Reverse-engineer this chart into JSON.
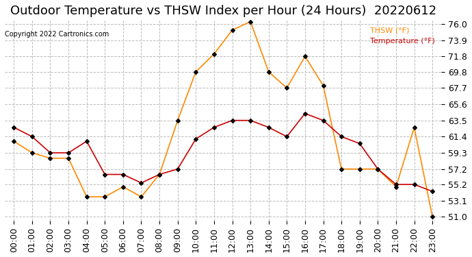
{
  "title": "Outdoor Temperature vs THSW Index per Hour (24 Hours)  20220612",
  "copyright": "Copyright 2022 Cartronics.com",
  "hours": [
    "00:00",
    "01:00",
    "02:00",
    "03:00",
    "04:00",
    "05:00",
    "06:00",
    "07:00",
    "08:00",
    "09:00",
    "10:00",
    "11:00",
    "12:00",
    "13:00",
    "14:00",
    "15:00",
    "16:00",
    "17:00",
    "18:00",
    "19:00",
    "20:00",
    "21:00",
    "22:00",
    "23:00"
  ],
  "temperature": [
    62.6,
    61.4,
    59.3,
    59.3,
    60.8,
    56.5,
    56.5,
    55.4,
    56.5,
    57.2,
    61.1,
    62.6,
    63.5,
    63.5,
    62.6,
    61.4,
    64.4,
    63.5,
    61.4,
    60.5,
    57.2,
    55.2,
    55.2,
    54.3
  ],
  "thsw": [
    60.8,
    59.3,
    58.6,
    58.6,
    53.6,
    53.6,
    54.9,
    53.6,
    56.5,
    63.5,
    69.8,
    72.1,
    75.2,
    76.3,
    69.8,
    67.7,
    71.8,
    68.0,
    57.2,
    57.2,
    57.2,
    54.9,
    62.6,
    51.0
  ],
  "ylim_min": 51.0,
  "ylim_max": 76.0,
  "yticks": [
    51.0,
    53.1,
    55.2,
    57.2,
    59.3,
    61.4,
    63.5,
    65.6,
    67.7,
    69.8,
    71.8,
    73.9,
    76.0
  ],
  "temp_color": "#cc0000",
  "thsw_color": "#ff8800",
  "marker": "D",
  "marker_size": 3,
  "bg_color": "#ffffff",
  "grid_color": "#bbbbbb",
  "title_fontsize": 13,
  "label_fontsize": 9,
  "legend_thsw": "THSW (°F)",
  "legend_temp": "Temperature (°F)"
}
